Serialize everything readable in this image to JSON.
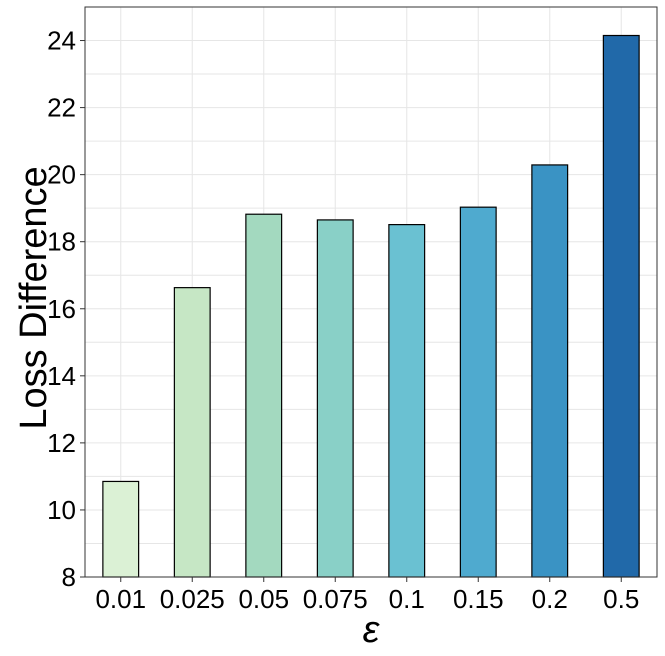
{
  "chart_data": {
    "type": "bar",
    "categories": [
      "0.01",
      "0.025",
      "0.05",
      "0.075",
      "0.1",
      "0.15",
      "0.2",
      "0.5"
    ],
    "values": [
      10.85,
      16.63,
      18.82,
      18.65,
      18.51,
      19.03,
      20.29,
      24.15
    ],
    "colors": [
      "#dbf1d5",
      "#c6e7c5",
      "#a3d9bf",
      "#89d0c7",
      "#6ac1d2",
      "#4faacf",
      "#3a93c4",
      "#2169a9"
    ],
    "bar_edge_color": "#000000",
    "xlabel": "ε",
    "ylabel": "Loss Difference",
    "ylim": [
      8,
      25
    ],
    "yticks": [
      8,
      10,
      12,
      14,
      16,
      18,
      20,
      22,
      24
    ],
    "grid": true,
    "legend": "none"
  }
}
